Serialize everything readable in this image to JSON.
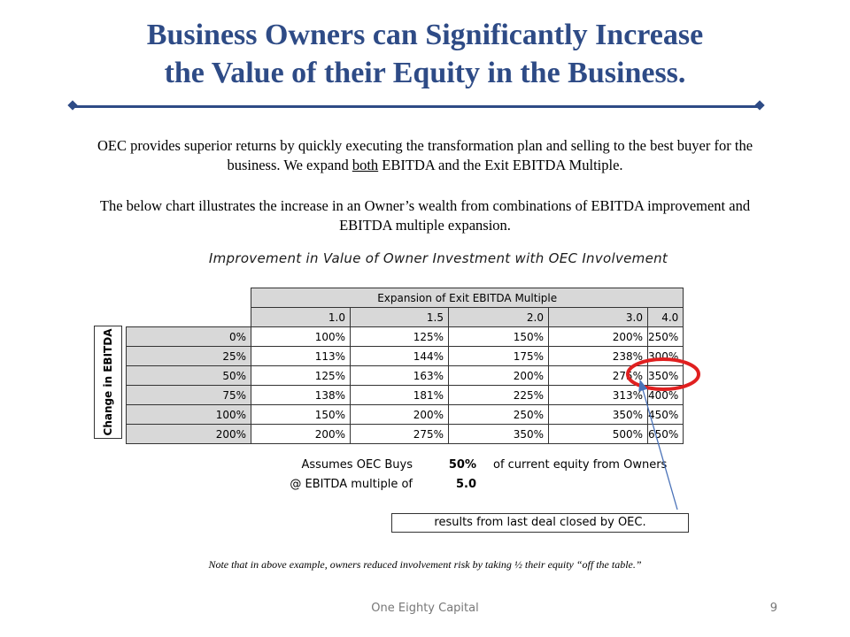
{
  "title_line1": "Business Owners can Significantly Increase",
  "title_line2": "the Value of their Equity in the Business.",
  "para1_pre": "OEC provides superior returns by quickly executing the transformation plan and selling to the best buyer for the business.  We expand ",
  "para1_underlined": "both",
  "para1_post": " EBITDA and the Exit EBITDA Multiple.",
  "para2": "The below chart illustrates the increase in an Owner’s wealth from combinations of EBITDA improvement and EBITDA multiple expansion.",
  "chart_title": "Improvement in Value of Owner Investment with OEC Involvement",
  "table": {
    "column_group": "Expansion of Exit EBITDA Multiple",
    "row_group": "Change in EBITDA",
    "columns": [
      "1.0",
      "1.5",
      "2.0",
      "3.0",
      "4.0"
    ],
    "rows": [
      {
        "label": "0%",
        "values": [
          "100%",
          "125%",
          "150%",
          "200%",
          "250%"
        ]
      },
      {
        "label": "25%",
        "values": [
          "113%",
          "144%",
          "175%",
          "238%",
          "300%"
        ]
      },
      {
        "label": "50%",
        "values": [
          "125%",
          "163%",
          "200%",
          "275%",
          "350%"
        ]
      },
      {
        "label": "75%",
        "values": [
          "138%",
          "181%",
          "225%",
          "313%",
          "400%"
        ]
      },
      {
        "label": "100%",
        "values": [
          "150%",
          "200%",
          "250%",
          "350%",
          "450%"
        ]
      },
      {
        "label": "200%",
        "values": [
          "200%",
          "275%",
          "350%",
          "500%",
          "650%"
        ]
      }
    ]
  },
  "assumptions": {
    "line1_label": "Assumes OEC Buys",
    "line1_value": "50%",
    "line1_suffix": "of current equity from Owners",
    "line2_label": "@ EBITDA multiple of",
    "line2_value": "5.0"
  },
  "callout": "results from last deal closed by OEC.",
  "note": "Note that in above example, owners reduced involvement risk by taking ½ their equity “off the table.”",
  "footer": "One Eighty Capital",
  "page_number": "9",
  "colors": {
    "title": "#2e4b86",
    "highlight": "#e02020",
    "arrow": "#4a72b8",
    "header_gray": "#d8d8d8"
  }
}
